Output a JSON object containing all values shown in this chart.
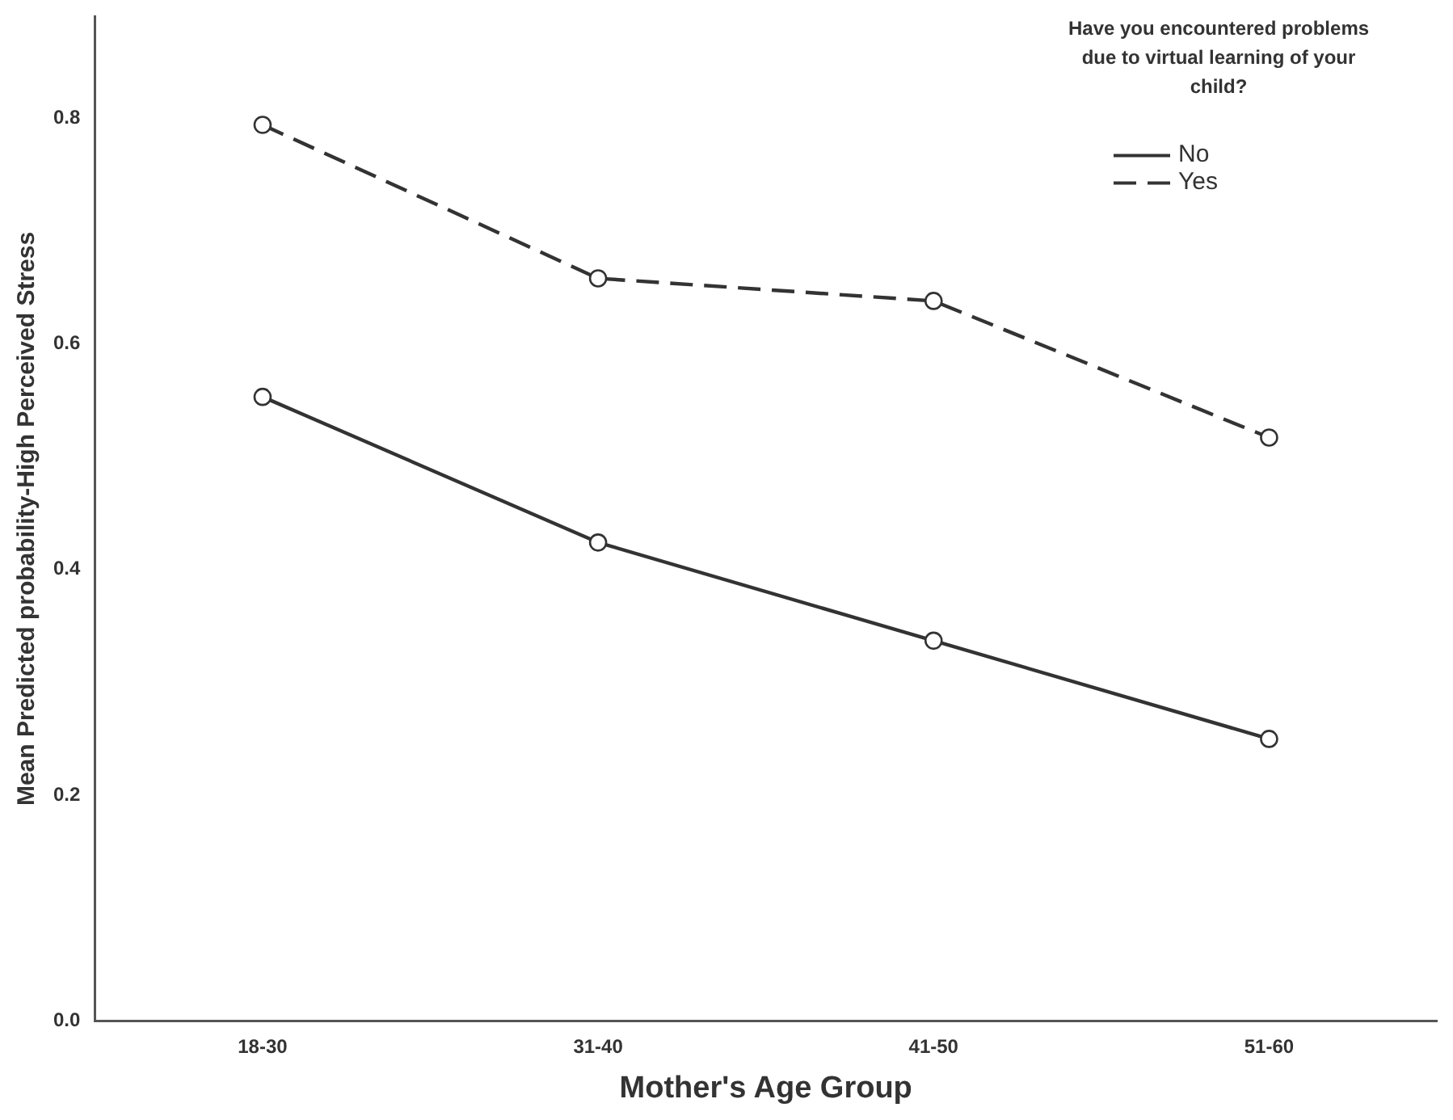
{
  "chart_data": {
    "type": "line",
    "xlabel": "Mother's Age Group",
    "ylabel": "Mean Predicted probability-High Perceived Stress",
    "legend_title": "Have you encountered problems due to virtual learning of your child?",
    "categories": [
      "18-30",
      "31-40",
      "41-50",
      "51-60"
    ],
    "series": [
      {
        "name": "No",
        "color": "#333333",
        "line_style": "solid",
        "values": [
          0.553,
          0.424,
          0.337,
          0.25
        ]
      },
      {
        "name": "Yes",
        "color": "#333333",
        "line_style": "dashed",
        "values": [
          0.794,
          0.658,
          0.638,
          0.517
        ]
      }
    ],
    "ylim": [
      0,
      0.89
    ],
    "yticks": [
      {
        "value": 0,
        "label": "0.0"
      },
      0.2,
      0.4,
      0.6,
      0.8
    ],
    "marker": "circle",
    "grid": false,
    "legend": "top right"
  }
}
